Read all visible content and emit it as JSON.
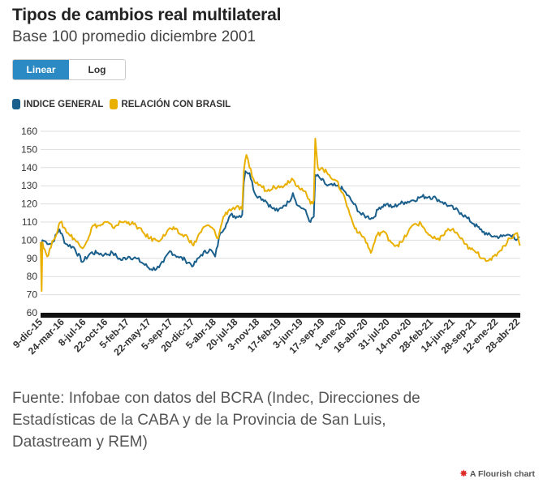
{
  "header": {
    "title": "Tipos de cambios real multilateral",
    "subtitle": "Base 100 promedio diciembre 2001"
  },
  "controls": {
    "linear_label": "Linear",
    "log_label": "Log",
    "selected": "Linear"
  },
  "colors": {
    "indice_general": "#1b5f8c",
    "relacion_brasil": "#e9b000",
    "toggle_active": "#2b8ac4",
    "gridline": "#dddddd",
    "axis_bar": "#111111"
  },
  "chart_data": {
    "type": "line",
    "legend_position": "top-left",
    "grid": true,
    "ylim": [
      60,
      160
    ],
    "yticks": [
      60,
      70,
      80,
      90,
      100,
      110,
      120,
      130,
      140,
      150,
      160
    ],
    "xlim": [
      "2015-12-09",
      "2022-05-10"
    ],
    "xticks": [
      {
        "label": "9-dic-15",
        "date": "2015-12-09"
      },
      {
        "label": "24-mar-16",
        "date": "2016-03-24"
      },
      {
        "label": "8-jul-16",
        "date": "2016-07-08"
      },
      {
        "label": "22-oct-16",
        "date": "2016-10-22"
      },
      {
        "label": "5-feb-17",
        "date": "2017-02-05"
      },
      {
        "label": "22-may-17",
        "date": "2017-05-22"
      },
      {
        "label": "5-sep-17",
        "date": "2017-09-05"
      },
      {
        "label": "20-dic-17",
        "date": "2017-12-20"
      },
      {
        "label": "5-abr-18",
        "date": "2018-04-05"
      },
      {
        "label": "20-jul-18",
        "date": "2018-07-20"
      },
      {
        "label": "3-nov-18",
        "date": "2018-11-03"
      },
      {
        "label": "17-feb-19",
        "date": "2019-02-17"
      },
      {
        "label": "3-jun-19",
        "date": "2019-06-03"
      },
      {
        "label": "17-sep-19",
        "date": "2019-09-17"
      },
      {
        "label": "1-ene-20",
        "date": "2020-01-01"
      },
      {
        "label": "16-abr-20",
        "date": "2020-04-16"
      },
      {
        "label": "31-jul-20",
        "date": "2020-07-31"
      },
      {
        "label": "14-nov-20",
        "date": "2020-11-14"
      },
      {
        "label": "28-feb-21",
        "date": "2021-02-28"
      },
      {
        "label": "14-jun-21",
        "date": "2021-06-14"
      },
      {
        "label": "28-sep-21",
        "date": "2021-09-28"
      },
      {
        "label": "12-ene-22",
        "date": "2022-01-12"
      },
      {
        "label": "28-abr-22",
        "date": "2022-04-28"
      }
    ],
    "series": [
      {
        "name": "INDICE GENERAL",
        "color": "#1b5f8c",
        "points": [
          [
            "2015-12-09",
            94
          ],
          [
            "2015-12-18",
            100
          ],
          [
            "2016-01-05",
            99
          ],
          [
            "2016-02-01",
            98
          ],
          [
            "2016-03-10",
            106
          ],
          [
            "2016-04-10",
            98
          ],
          [
            "2016-05-20",
            96
          ],
          [
            "2016-07-01",
            88
          ],
          [
            "2016-08-10",
            93
          ],
          [
            "2016-09-15",
            93
          ],
          [
            "2016-10-15",
            92
          ],
          [
            "2016-11-25",
            93
          ],
          [
            "2017-01-05",
            89
          ],
          [
            "2017-02-10",
            91
          ],
          [
            "2017-03-20",
            90
          ],
          [
            "2017-04-25",
            87
          ],
          [
            "2017-06-01",
            84
          ],
          [
            "2017-07-10",
            85
          ],
          [
            "2017-08-01",
            88
          ],
          [
            "2017-09-01",
            94
          ],
          [
            "2017-10-10",
            91
          ],
          [
            "2017-11-15",
            89
          ],
          [
            "2017-12-25",
            86
          ],
          [
            "2018-02-01",
            92
          ],
          [
            "2018-03-15",
            95
          ],
          [
            "2018-04-10",
            91
          ],
          [
            "2018-05-05",
            104
          ],
          [
            "2018-06-10",
            110
          ],
          [
            "2018-06-25",
            114
          ],
          [
            "2018-07-25",
            113
          ],
          [
            "2018-08-20",
            114
          ],
          [
            "2018-08-28",
            132
          ],
          [
            "2018-09-05",
            138
          ],
          [
            "2018-09-25",
            137
          ],
          [
            "2018-10-20",
            126
          ],
          [
            "2018-11-10",
            124
          ],
          [
            "2018-12-10",
            122
          ],
          [
            "2019-01-10",
            118
          ],
          [
            "2019-02-10",
            116
          ],
          [
            "2019-03-10",
            119
          ],
          [
            "2019-04-05",
            121
          ],
          [
            "2019-04-25",
            126
          ],
          [
            "2019-05-20",
            119
          ],
          [
            "2019-06-20",
            117
          ],
          [
            "2019-07-20",
            110
          ],
          [
            "2019-08-05",
            113
          ],
          [
            "2019-08-12",
            136
          ],
          [
            "2019-09-05",
            134
          ],
          [
            "2019-10-10",
            130
          ],
          [
            "2019-11-20",
            130
          ],
          [
            "2019-12-25",
            128
          ],
          [
            "2020-02-10",
            121
          ],
          [
            "2020-03-25",
            114
          ],
          [
            "2020-04-20",
            113
          ],
          [
            "2020-05-20",
            112
          ],
          [
            "2020-06-20",
            118
          ],
          [
            "2020-07-25",
            120
          ],
          [
            "2020-08-20",
            118
          ],
          [
            "2020-09-25",
            120
          ],
          [
            "2020-10-25",
            121
          ],
          [
            "2020-12-01",
            122
          ],
          [
            "2021-01-15",
            124
          ],
          [
            "2021-02-20",
            124
          ],
          [
            "2021-03-25",
            123
          ],
          [
            "2021-04-25",
            121
          ],
          [
            "2021-05-25",
            119
          ],
          [
            "2021-06-25",
            117
          ],
          [
            "2021-07-25",
            115
          ],
          [
            "2021-08-25",
            112
          ],
          [
            "2021-09-25",
            109
          ],
          [
            "2021-10-25",
            106
          ],
          [
            "2021-12-01",
            103
          ],
          [
            "2022-01-10",
            102
          ],
          [
            "2022-02-10",
            102
          ],
          [
            "2022-03-15",
            103
          ],
          [
            "2022-04-05",
            103
          ],
          [
            "2022-04-20",
            100
          ],
          [
            "2022-05-05",
            102
          ]
        ]
      },
      {
        "name": "RELACIÓN CON BRASIL",
        "color": "#e9b000",
        "points": [
          [
            "2015-12-09",
            99
          ],
          [
            "2015-12-14",
            72
          ],
          [
            "2015-12-18",
            99
          ],
          [
            "2016-01-10",
            91
          ],
          [
            "2016-02-10",
            100
          ],
          [
            "2016-03-15",
            110
          ],
          [
            "2016-04-20",
            104
          ],
          [
            "2016-05-20",
            101
          ],
          [
            "2016-06-25",
            96
          ],
          [
            "2016-07-20",
            99
          ],
          [
            "2016-08-20",
            108
          ],
          [
            "2016-09-25",
            108
          ],
          [
            "2016-10-25",
            110
          ],
          [
            "2016-11-25",
            107
          ],
          [
            "2017-01-05",
            110
          ],
          [
            "2017-02-10",
            110
          ],
          [
            "2017-03-20",
            108
          ],
          [
            "2017-04-25",
            104
          ],
          [
            "2017-05-25",
            101
          ],
          [
            "2017-06-25",
            100
          ],
          [
            "2017-07-25",
            101
          ],
          [
            "2017-08-25",
            106
          ],
          [
            "2017-09-25",
            106
          ],
          [
            "2017-10-25",
            103
          ],
          [
            "2017-11-25",
            102
          ],
          [
            "2017-12-25",
            97
          ],
          [
            "2018-01-25",
            104
          ],
          [
            "2018-02-25",
            108
          ],
          [
            "2018-03-25",
            107
          ],
          [
            "2018-04-25",
            101
          ],
          [
            "2018-05-20",
            113
          ],
          [
            "2018-06-20",
            117
          ],
          [
            "2018-07-20",
            118
          ],
          [
            "2018-08-20",
            117
          ],
          [
            "2018-08-28",
            138
          ],
          [
            "2018-09-10",
            147
          ],
          [
            "2018-09-25",
            140
          ],
          [
            "2018-10-20",
            132
          ],
          [
            "2018-11-20",
            130
          ],
          [
            "2018-12-20",
            127
          ],
          [
            "2019-01-20",
            130
          ],
          [
            "2019-02-20",
            129
          ],
          [
            "2019-03-20",
            131
          ],
          [
            "2019-04-20",
            134
          ],
          [
            "2019-05-20",
            130
          ],
          [
            "2019-06-20",
            127
          ],
          [
            "2019-07-20",
            120
          ],
          [
            "2019-08-05",
            122
          ],
          [
            "2019-08-12",
            156
          ],
          [
            "2019-08-25",
            140
          ],
          [
            "2019-09-20",
            139
          ],
          [
            "2019-10-20",
            136
          ],
          [
            "2019-11-20",
            133
          ],
          [
            "2019-12-25",
            126
          ],
          [
            "2020-02-10",
            110
          ],
          [
            "2020-03-10",
            104
          ],
          [
            "2020-04-10",
            101
          ],
          [
            "2020-05-10",
            93
          ],
          [
            "2020-06-10",
            103
          ],
          [
            "2020-07-10",
            105
          ],
          [
            "2020-08-10",
            100
          ],
          [
            "2020-09-10",
            97
          ],
          [
            "2020-10-10",
            99
          ],
          [
            "2020-11-10",
            105
          ],
          [
            "2020-12-10",
            109
          ],
          [
            "2021-01-10",
            109
          ],
          [
            "2021-02-10",
            104
          ],
          [
            "2021-03-10",
            101
          ],
          [
            "2021-04-10",
            100
          ],
          [
            "2021-05-10",
            105
          ],
          [
            "2021-06-10",
            106
          ],
          [
            "2021-07-10",
            103
          ],
          [
            "2021-08-10",
            98
          ],
          [
            "2021-09-10",
            95
          ],
          [
            "2021-10-10",
            93
          ],
          [
            "2021-11-10",
            90
          ],
          [
            "2021-12-20",
            89
          ],
          [
            "2022-01-20",
            93
          ],
          [
            "2022-02-20",
            97
          ],
          [
            "2022-03-20",
            101
          ],
          [
            "2022-04-10",
            103
          ],
          [
            "2022-04-25",
            104
          ],
          [
            "2022-05-08",
            97
          ]
        ]
      }
    ]
  },
  "footer": {
    "source": "Fuente: Infobae con datos del BCRA (Indec, Direcciones de Estadísticas de la CABA y de la Provincia de San Luis, Datastream y REM)",
    "credit": "A Flourish chart"
  }
}
